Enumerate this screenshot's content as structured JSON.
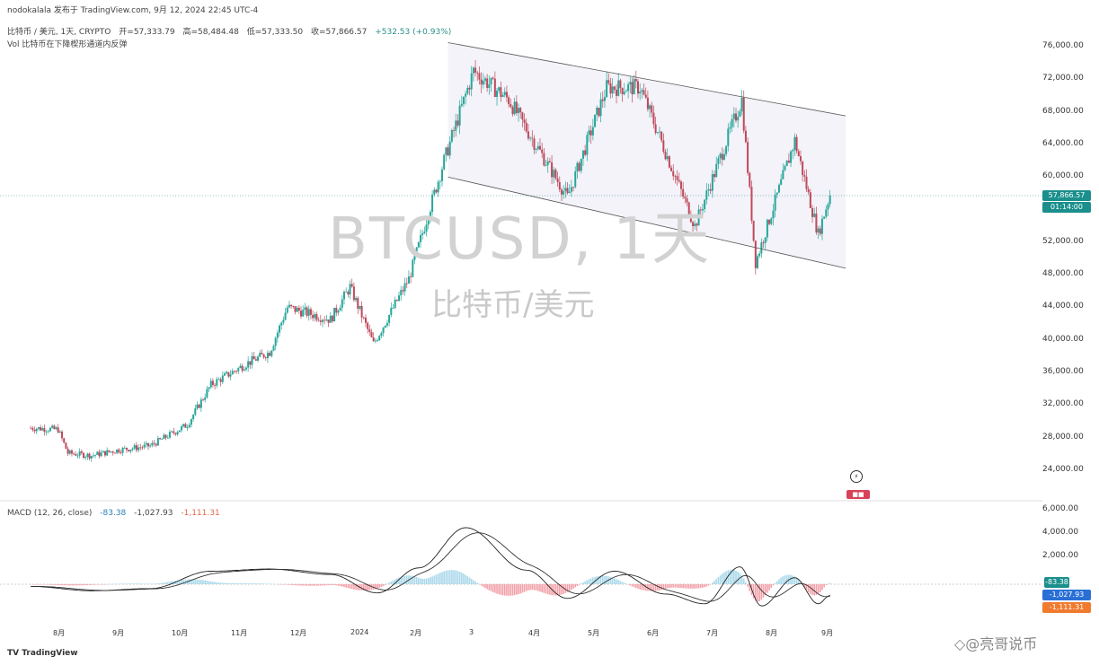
{
  "header": {
    "line1": "nodokalala 发布于 TradingView.com, 9月 12, 2024 22:45 UTC-4",
    "line2_title": "比特币 / 美元, 1天, CRYPTO",
    "line2_vals": [
      "开=57,333.79",
      "高=58,484.48",
      "低=57,333.50",
      "收=57,866.57",
      "+532.53 (+0.93%)"
    ],
    "line3": "Vol 比特币在下降楔形通道内反弹"
  },
  "watermark": {
    "title": "BTCUSD, 1天",
    "subtitle": "比特币/美元"
  },
  "price_axis": {
    "labels": [
      "76,000.00",
      "72,000.00",
      "68,000.00",
      "64,000.00",
      "60,000.00",
      "56,000.00",
      "52,000.00",
      "48,000.00",
      "44,000.00",
      "40,000.00",
      "36,000.00",
      "32,000.00",
      "28,000.00",
      "24,000.00"
    ],
    "current_price_tag": "57,866.57",
    "countdown_tag": "01:14:00"
  },
  "macd": {
    "label": "MACD (12, 26, close)",
    "values": [
      "-83.38",
      "-1,027.93",
      "-1,111.31"
    ],
    "axis_labels": [
      "6,000.00",
      "4,000.00",
      "2,000.00"
    ],
    "tags": [
      "-83.38",
      "-1,027.93",
      "-1,111.31"
    ]
  },
  "time_axis": [
    "8月",
    "9月",
    "10月",
    "11月",
    "12月",
    "2024",
    "2月",
    "3",
    "4月",
    "5月",
    "6月",
    "7月",
    "8月",
    "9月"
  ],
  "logo": "TV TradingView",
  "credit": "◇@亮哥说币",
  "colors": {
    "up": "#26a69a",
    "down": "#c0485a",
    "macd_line": "#222222",
    "signal_line": "#333333",
    "current_tag": "#1a8f8c"
  },
  "chart_data": {
    "type": "candlestick",
    "title": "BTCUSD, 1天",
    "subtitle": "比特币/美元",
    "ylim": [
      22000,
      78000
    ],
    "close_series_approx": [
      {
        "x": "2023-08-01",
        "y": 29200
      },
      {
        "x": "2023-08-15",
        "y": 29000
      },
      {
        "x": "2023-08-20",
        "y": 26100
      },
      {
        "x": "2023-09-01",
        "y": 25800
      },
      {
        "x": "2023-09-15",
        "y": 26500
      },
      {
        "x": "2023-10-01",
        "y": 27000
      },
      {
        "x": "2023-10-20",
        "y": 29600
      },
      {
        "x": "2023-11-01",
        "y": 34500
      },
      {
        "x": "2023-11-20",
        "y": 37200
      },
      {
        "x": "2023-12-01",
        "y": 38500
      },
      {
        "x": "2023-12-10",
        "y": 44000
      },
      {
        "x": "2024-01-01",
        "y": 42500
      },
      {
        "x": "2024-01-11",
        "y": 46500
      },
      {
        "x": "2024-01-23",
        "y": 39500
      },
      {
        "x": "2024-02-10",
        "y": 47500
      },
      {
        "x": "2024-02-28",
        "y": 62000
      },
      {
        "x": "2024-03-14",
        "y": 73000
      },
      {
        "x": "2024-04-01",
        "y": 69500
      },
      {
        "x": "2024-05-01",
        "y": 57500
      },
      {
        "x": "2024-05-21",
        "y": 71000
      },
      {
        "x": "2024-06-07",
        "y": 71000
      },
      {
        "x": "2024-07-05",
        "y": 54000
      },
      {
        "x": "2024-07-29",
        "y": 69500
      },
      {
        "x": "2024-08-05",
        "y": 49500
      },
      {
        "x": "2024-08-25",
        "y": 64500
      },
      {
        "x": "2024-09-06",
        "y": 53000
      },
      {
        "x": "2024-09-12",
        "y": 57866
      }
    ],
    "channel": {
      "upper": [
        [
          "2024-03-01",
          76500
        ],
        [
          "2024-09-20",
          67500
        ]
      ],
      "lower": [
        [
          "2024-03-01",
          60000
        ],
        [
          "2024-09-20",
          48800
        ]
      ]
    },
    "macd_approx": [
      {
        "x": "2023-08-01",
        "y": -200
      },
      {
        "x": "2023-09-01",
        "y": -600
      },
      {
        "x": "2023-10-01",
        "y": -400
      },
      {
        "x": "2023-11-01",
        "y": 1200
      },
      {
        "x": "2023-12-01",
        "y": 1400
      },
      {
        "x": "2024-01-01",
        "y": 900
      },
      {
        "x": "2024-01-25",
        "y": -800
      },
      {
        "x": "2024-02-15",
        "y": 1500
      },
      {
        "x": "2024-03-10",
        "y": 5200
      },
      {
        "x": "2024-04-10",
        "y": 1300
      },
      {
        "x": "2024-05-01",
        "y": -1300
      },
      {
        "x": "2024-05-25",
        "y": 1200
      },
      {
        "x": "2024-06-20",
        "y": -900
      },
      {
        "x": "2024-07-10",
        "y": -1800
      },
      {
        "x": "2024-07-28",
        "y": 1600
      },
      {
        "x": "2024-08-08",
        "y": -2000
      },
      {
        "x": "2024-08-25",
        "y": 600
      },
      {
        "x": "2024-09-06",
        "y": -1800
      },
      {
        "x": "2024-09-12",
        "y": -1028
      }
    ]
  }
}
